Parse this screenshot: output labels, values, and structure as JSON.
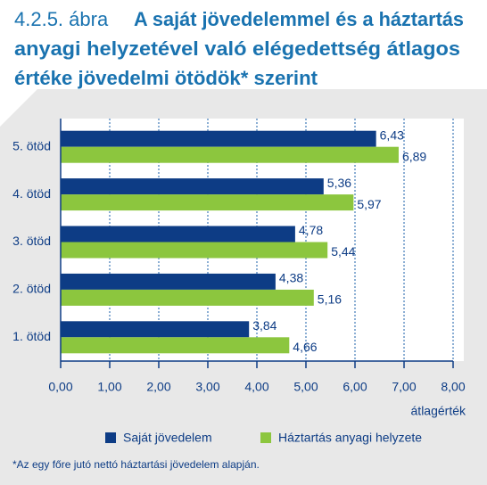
{
  "chart_data": {
    "type": "hbar",
    "figure_number": "4.2.5. ábra",
    "title_lines": [
      "A saját jövedelemmel és a háztartás",
      "anyagi helyzetével való elégedettség átlagos",
      "értéke jövedelmi ötödök* szerint"
    ],
    "categories": [
      "5. ötöd",
      "4. ötöd",
      "3. ötöd",
      "2. ötöd",
      "1. ötöd"
    ],
    "series": [
      {
        "name": "Saját jövedelem",
        "color": "#0d3c85",
        "values": [
          6.43,
          5.36,
          4.78,
          4.38,
          3.84
        ],
        "value_labels": [
          "6,43",
          "5,36",
          "4,78",
          "4,38",
          "3,84"
        ]
      },
      {
        "name": "Háztartás anyagi helyzete",
        "color": "#8cc63e",
        "values": [
          6.89,
          5.97,
          5.44,
          5.16,
          4.66
        ],
        "value_labels": [
          "6,89",
          "5,97",
          "5,44",
          "5,16",
          "4,66"
        ]
      }
    ],
    "xlim": [
      0,
      8
    ],
    "xticks": [
      {
        "value": 0,
        "label": "0,00"
      },
      {
        "value": 1,
        "label": "1,00"
      },
      {
        "value": 2,
        "label": "2,00"
      },
      {
        "value": 3,
        "label": "3,00"
      },
      {
        "value": 4,
        "label": "4,00"
      },
      {
        "value": 5,
        "label": "5,00"
      },
      {
        "value": 6,
        "label": "6,00"
      },
      {
        "value": 7,
        "label": "7,00"
      },
      {
        "value": 8,
        "label": "8,00"
      }
    ],
    "x_label": "átlagérték",
    "grid": true,
    "footnote": "*Az egy főre jutó nettó háztartási jövedelem alapján."
  }
}
